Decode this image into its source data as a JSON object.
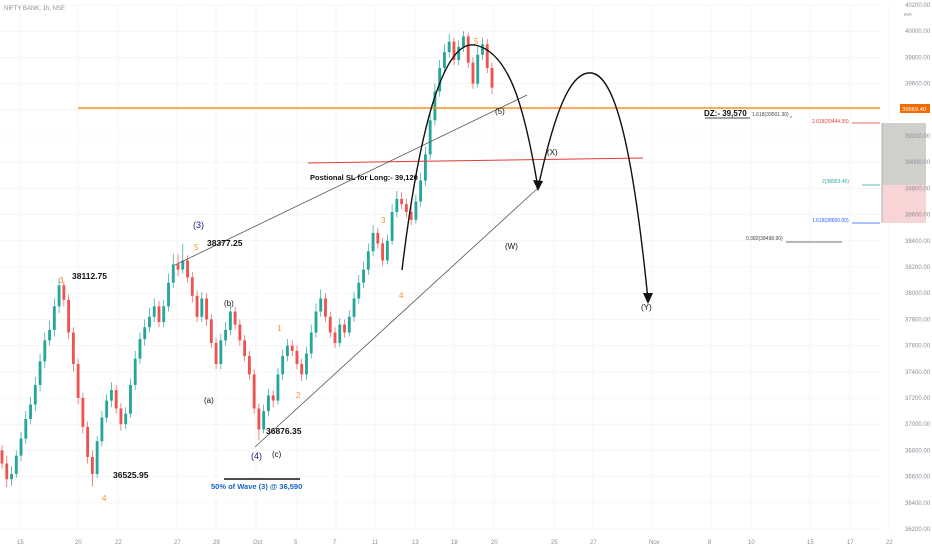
{
  "symbol": "NIFTY BANK, 1h, NSE",
  "scale_badge": "INR",
  "colors": {
    "up": "#26a69a",
    "down": "#ef5350",
    "orange": "#f7931a",
    "blue": "#1e3a8a",
    "black": "#111111",
    "grid": "#eef0f3",
    "trendline": "#666666",
    "red_line": "#e53935",
    "last_price_bg": "#ef6c00"
  },
  "chart_data": {
    "type": "candlestick",
    "ylim": [
      36200,
      40200
    ],
    "y_ticks": [
      40200,
      40000,
      39800,
      39600,
      39400,
      39200,
      39000,
      38800,
      38600,
      38400,
      38200,
      38000,
      37800,
      37600,
      37400,
      37200,
      37000,
      36800,
      36600,
      36400,
      36200
    ],
    "x_ticks": [
      "15",
      "20",
      "22",
      "27",
      "29",
      "Oct",
      "5",
      "7",
      "11",
      "13",
      "18",
      "20",
      "25",
      "27",
      "Nov",
      "8",
      "10",
      "15",
      "17",
      "22"
    ],
    "last_price": "39569.40",
    "candles": [
      [
        36800,
        36700,
        36840,
        36660
      ],
      [
        36700,
        36580,
        36760,
        36520
      ],
      [
        36580,
        36620,
        36680,
        36530
      ],
      [
        36620,
        36760,
        36800,
        36590
      ],
      [
        36760,
        36890,
        36940,
        36720
      ],
      [
        36890,
        37040,
        37100,
        36850
      ],
      [
        37040,
        37150,
        37210,
        37000
      ],
      [
        37150,
        37300,
        37360,
        37100
      ],
      [
        37300,
        37480,
        37540,
        37250
      ],
      [
        37480,
        37640,
        37700,
        37430
      ],
      [
        37640,
        37720,
        37790,
        37600
      ],
      [
        37720,
        37900,
        37960,
        37670
      ],
      [
        37900,
        38060,
        38113,
        37850
      ],
      [
        38060,
        37950,
        38090,
        37900
      ],
      [
        37950,
        37700,
        37990,
        37650
      ],
      [
        37700,
        37460,
        37740,
        37400
      ],
      [
        37460,
        37200,
        37500,
        37150
      ],
      [
        37200,
        36980,
        37240,
        36930
      ],
      [
        36980,
        36750,
        37020,
        36700
      ],
      [
        36750,
        36620,
        36800,
        36526
      ],
      [
        36620,
        36870,
        36910,
        36590
      ],
      [
        36870,
        37050,
        37100,
        36830
      ],
      [
        37050,
        37180,
        37230,
        37010
      ],
      [
        37180,
        37260,
        37320,
        37130
      ],
      [
        37260,
        37120,
        37300,
        37080
      ],
      [
        37120,
        37000,
        37160,
        36950
      ],
      [
        37000,
        37080,
        37130,
        36960
      ],
      [
        37080,
        37300,
        37350,
        37050
      ],
      [
        37300,
        37500,
        37560,
        37260
      ],
      [
        37500,
        37650,
        37700,
        37460
      ],
      [
        37650,
        37740,
        37800,
        37600
      ],
      [
        37740,
        37820,
        37890,
        37700
      ],
      [
        37820,
        37900,
        37960,
        37780
      ],
      [
        37900,
        37780,
        37940,
        37740
      ],
      [
        37780,
        37900,
        37950,
        37740
      ],
      [
        37900,
        38080,
        38150,
        37860
      ],
      [
        38080,
        38220,
        38300,
        38040
      ],
      [
        38220,
        38180,
        38300,
        38130
      ],
      [
        38180,
        38250,
        38378,
        38150
      ],
      [
        38250,
        38120,
        38290,
        38080
      ],
      [
        38120,
        37980,
        38160,
        37930
      ],
      [
        37980,
        37820,
        38020,
        37780
      ],
      [
        37820,
        37960,
        38010,
        37780
      ],
      [
        37960,
        37800,
        38000,
        37750
      ],
      [
        37800,
        37620,
        37840,
        37580
      ],
      [
        37620,
        37460,
        37660,
        37420
      ],
      [
        37460,
        37640,
        37690,
        37420
      ],
      [
        37640,
        37720,
        37780,
        37600
      ],
      [
        37720,
        37860,
        37910,
        37680
      ],
      [
        37860,
        37760,
        37900,
        37720
      ],
      [
        37760,
        37640,
        37800,
        37600
      ],
      [
        37640,
        37520,
        37680,
        37480
      ],
      [
        37520,
        37380,
        37560,
        37340
      ],
      [
        37380,
        37120,
        37420,
        37080
      ],
      [
        37120,
        36960,
        37160,
        36876
      ],
      [
        36960,
        37100,
        37150,
        36930
      ],
      [
        37100,
        37220,
        37270,
        37060
      ],
      [
        37220,
        37180,
        37260,
        37130
      ],
      [
        37180,
        37380,
        37430,
        37150
      ],
      [
        37380,
        37520,
        37570,
        37340
      ],
      [
        37520,
        37600,
        37650,
        37480
      ],
      [
        37600,
        37560,
        37640,
        37520
      ],
      [
        37560,
        37460,
        37600,
        37420
      ],
      [
        37460,
        37380,
        37500,
        37330
      ],
      [
        37380,
        37540,
        37590,
        37340
      ],
      [
        37540,
        37700,
        37760,
        37500
      ],
      [
        37700,
        37860,
        37920,
        37660
      ],
      [
        37860,
        37960,
        38030,
        37820
      ],
      [
        37960,
        37820,
        38000,
        37780
      ],
      [
        37820,
        37700,
        37860,
        37660
      ],
      [
        37700,
        37620,
        37740,
        37580
      ],
      [
        37620,
        37760,
        37810,
        37590
      ],
      [
        37760,
        37700,
        37800,
        37660
      ],
      [
        37700,
        37820,
        37870,
        37670
      ],
      [
        37820,
        37960,
        38010,
        37780
      ],
      [
        37960,
        38080,
        38140,
        37920
      ],
      [
        38080,
        38180,
        38240,
        38040
      ],
      [
        38180,
        38320,
        38380,
        38140
      ],
      [
        38320,
        38460,
        38520,
        38280
      ],
      [
        38460,
        38380,
        38500,
        38340
      ],
      [
        38380,
        38250,
        38420,
        38210
      ],
      [
        38250,
        38400,
        38450,
        38220
      ],
      [
        38400,
        38620,
        38680,
        38370
      ],
      [
        38620,
        38720,
        38780,
        38580
      ],
      [
        38720,
        38680,
        38770,
        38640
      ],
      [
        38680,
        38620,
        38720,
        38580
      ],
      [
        38620,
        38560,
        38660,
        38520
      ],
      [
        38560,
        38700,
        38750,
        38530
      ],
      [
        38700,
        38860,
        38920,
        38660
      ],
      [
        38860,
        39060,
        39120,
        38820
      ],
      [
        39060,
        39320,
        39380,
        39020
      ],
      [
        39320,
        39540,
        39600,
        39280
      ],
      [
        39540,
        39720,
        39780,
        39500
      ],
      [
        39720,
        39840,
        39900,
        39680
      ],
      [
        39840,
        39920,
        39980,
        39800
      ],
      [
        39920,
        39780,
        39950,
        39740
      ],
      [
        39780,
        39880,
        39930,
        39740
      ],
      [
        39880,
        39960,
        40000,
        39840
      ],
      [
        39960,
        39760,
        39990,
        39720
      ],
      [
        39760,
        39600,
        39800,
        39560
      ],
      [
        39600,
        39820,
        39880,
        39570
      ],
      [
        39820,
        39900,
        39950,
        39780
      ],
      [
        39900,
        39720,
        39940,
        39680
      ],
      [
        39720,
        39569,
        39760,
        39520
      ]
    ],
    "fib_levels": [
      {
        "label": "1.618(39501.30)",
        "value": 39501.3,
        "color": "#444444"
      },
      {
        "label": "2.618(39444.35)",
        "value": 39444.35,
        "color": "#e53935"
      },
      {
        "label": "2(38953.45)",
        "value": 38953.45,
        "color": "#26a69a"
      },
      {
        "label": "1.618(38650.00)",
        "value": 38650,
        "color": "#2962ff"
      },
      {
        "label": "0.382(38498.90)",
        "value": 38498.9,
        "color": "#444444"
      }
    ]
  },
  "annotations": {
    "dz": "DZ:- 39,570",
    "sl": "Postional SL for Long:- 39,120",
    "fifty_pct": "50% of Wave (3) @ 36,590",
    "price_38112": "38112.75",
    "price_38377": "38377.25",
    "price_36525": "36525.95",
    "price_36876": "36876.35",
    "wave_3_left": "3",
    "wave_4_left": "4",
    "wave_5_mid": "5",
    "wave_1": "1",
    "wave_2": "2",
    "wave_3_mid": "3",
    "wave_4_mid": "4",
    "wave_5_top": "5",
    "wave_a": "(a)",
    "wave_b": "(b)",
    "wave_c": "(c)",
    "wave_3_blue": "(3)",
    "wave_4_blue": "(4)",
    "wave_5_paren": "(5)",
    "wave_w": "(W)",
    "wave_x": "(X)",
    "wave_y": "(Y)"
  }
}
